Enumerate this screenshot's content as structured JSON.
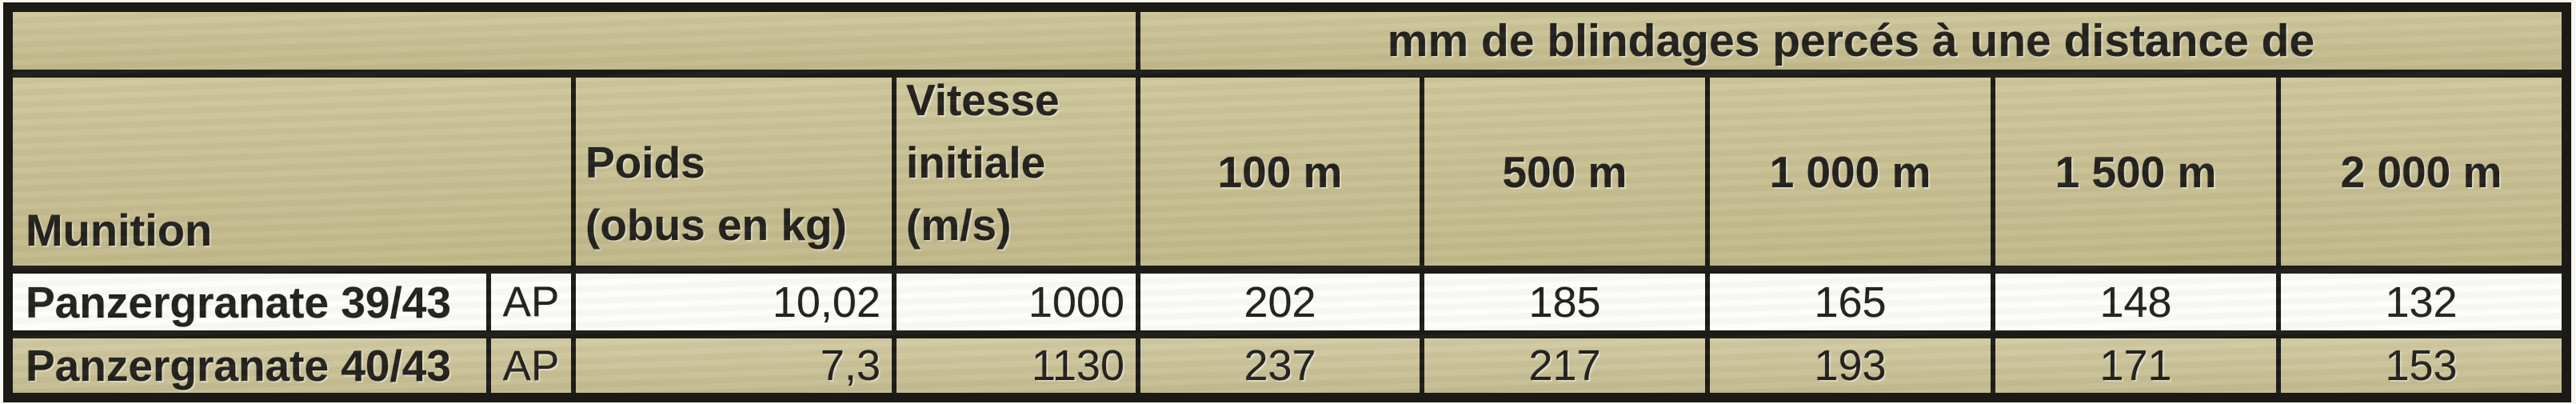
{
  "table": {
    "span_header": "mm de blindages percés à une distance de",
    "munition_header": "Munition",
    "poids_header": "Poids\n(obus en kg)",
    "vitesse_header": "Vitesse\ninitiale\n(m/s)",
    "distance_headers": [
      "100 m",
      "500 m",
      "1 000 m",
      "1 500 m",
      "2 000 m"
    ],
    "rows": [
      {
        "munition": "Panzergranate 39/43",
        "type": "AP",
        "poids": "10,02",
        "vitesse": "1000",
        "values": [
          "202",
          "185",
          "165",
          "148",
          "132"
        ]
      },
      {
        "munition": "Panzergranate 40/43",
        "type": "AP",
        "poids": "7,3",
        "vitesse": "1130",
        "values": [
          "237",
          "217",
          "193",
          "171",
          "153"
        ]
      }
    ],
    "colors": {
      "khaki": "#c9c090",
      "row_alt": "#cdc497",
      "white_row": "#fcfcf9",
      "border": "#1c1a16",
      "text": "#22201c",
      "page": "#f8f6f0"
    }
  }
}
